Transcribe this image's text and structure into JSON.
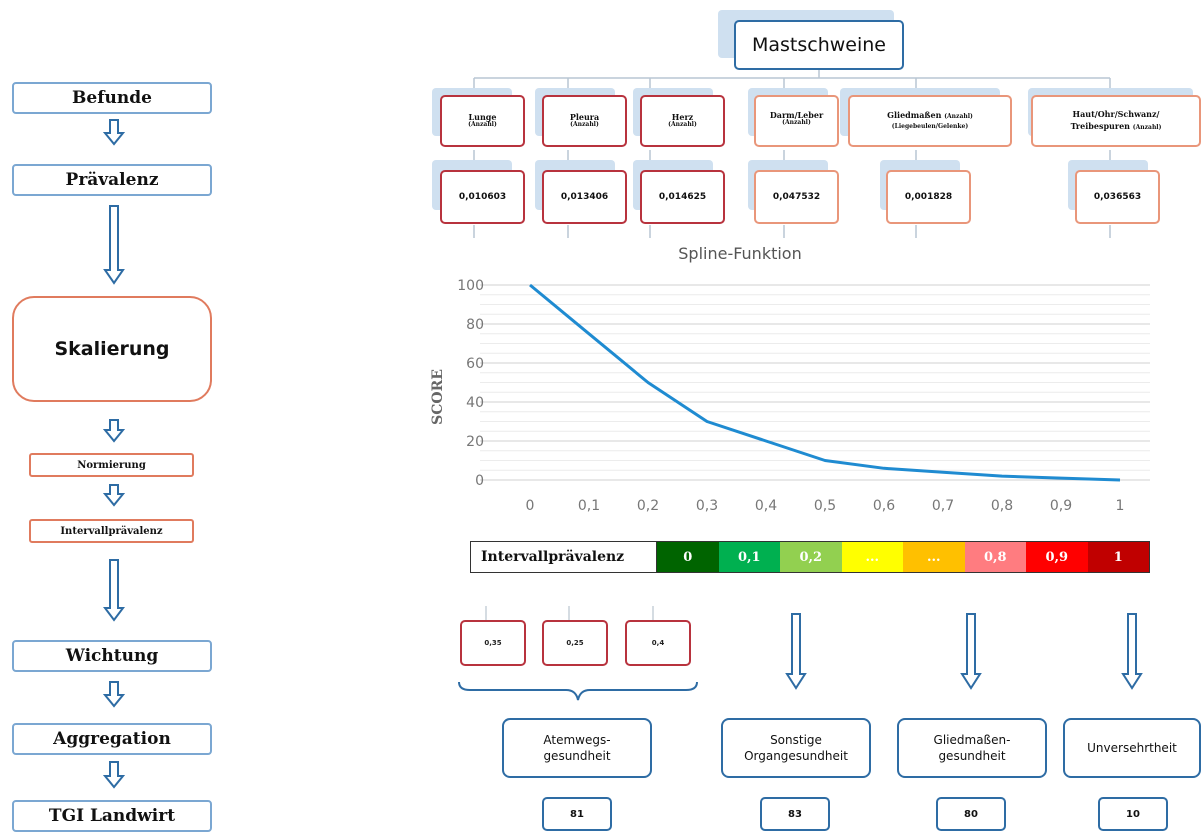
{
  "left_flow": {
    "befunde": "Befunde",
    "praevalenz": "Prävalenz",
    "skalierung": "Skalierung",
    "normierung": "Normierung",
    "intervallpraevalenz": "Intervallprävalenz",
    "wichtung": "Wichtung",
    "aggregation": "Aggregation",
    "tgi": "TGI Landwirt"
  },
  "tree": {
    "root": "Mastschweine",
    "categories": [
      {
        "label": "Lunge",
        "sub": "(Anzahl)",
        "value": "0,010603"
      },
      {
        "label": "Pleura",
        "sub": "(Anzahl)",
        "value": "0,013406"
      },
      {
        "label": "Herz",
        "sub": "(Anzahl)",
        "value": "0,014625"
      },
      {
        "label": "Darm/Leber",
        "sub": "(Anzahl)",
        "value": "0,047532"
      },
      {
        "label": "Gliedmaßen",
        "label_sub": "(Anzahl)",
        "sub": "(Liegebeulen/Gelenke)",
        "value": "0,001828"
      },
      {
        "label": "Haut/Ohr/Schwanz/",
        "label2": "Treibespuren",
        "label2_sub": "(Anzahl)",
        "value": "0,036563"
      }
    ]
  },
  "chart_data": {
    "type": "line",
    "title": "Spline-Funktion",
    "ylabel": "SCORE",
    "xlabel": "",
    "x_ticks": [
      "0",
      "0,1",
      "0,2",
      "0,3",
      "0,4",
      "0,5",
      "0,6",
      "0,7",
      "0,8",
      "0,9",
      "1"
    ],
    "y_ticks": [
      "0",
      "20",
      "40",
      "60",
      "80",
      "100"
    ],
    "ylim": [
      0,
      100
    ],
    "xlim": [
      0,
      1
    ],
    "grid": true,
    "series": [
      {
        "color": "#1f8bd1",
        "points": [
          [
            0,
            100
          ],
          [
            0.1,
            75
          ],
          [
            0.2,
            50
          ],
          [
            0.3,
            30
          ],
          [
            0.4,
            20
          ],
          [
            0.5,
            10
          ],
          [
            0.6,
            6
          ],
          [
            0.7,
            4
          ],
          [
            0.8,
            2
          ],
          [
            0.9,
            1
          ],
          [
            1.0,
            0
          ]
        ]
      }
    ]
  },
  "legend": {
    "label": "Intervallprävalenz",
    "cells": [
      {
        "text": "0",
        "color": "#006400"
      },
      {
        "text": "0,1",
        "color": "#00b050"
      },
      {
        "text": "0,2",
        "color": "#92d050"
      },
      {
        "text": "...",
        "color": "#ffff00"
      },
      {
        "text": "...",
        "color": "#ffc000"
      },
      {
        "text": "0,8",
        "color": "#ff7c80"
      },
      {
        "text": "0,9",
        "color": "#ff0000"
      },
      {
        "text": "1",
        "color": "#c00000"
      }
    ]
  },
  "weights": [
    "0,35",
    "0,25",
    "0,4"
  ],
  "groups": [
    {
      "line1": "Atemwegs-",
      "line2": "gesundheit",
      "score": "81"
    },
    {
      "line1": "Sonstige",
      "line2": "Organgesundheit",
      "score": "83"
    },
    {
      "line1": "Gliedmaßen-",
      "line2": "gesundheit",
      "score": "80"
    },
    {
      "line1": "Unversehrtheit",
      "line2": "",
      "score": "10"
    }
  ]
}
